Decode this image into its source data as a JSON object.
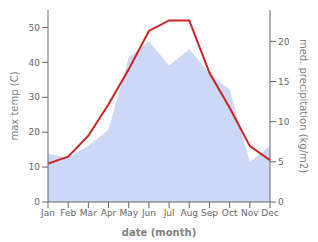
{
  "chart_data": {
    "type": "line",
    "categories": [
      "Jan",
      "Feb",
      "Mar",
      "Apr",
      "May",
      "Jun",
      "Jul",
      "Aug",
      "Sep",
      "Oct",
      "Nov",
      "Dec"
    ],
    "xlabel": "date (month)",
    "ylabel": "max temp (C)",
    "y2label": "med. precipitation (kg/m2)",
    "ylim": [
      0,
      55
    ],
    "yticks": [
      0,
      10,
      20,
      30,
      40,
      50
    ],
    "y2lim": [
      0,
      23.9
    ],
    "y2ticks": [
      0,
      5,
      10,
      15,
      20
    ],
    "series": [
      {
        "type": "area",
        "axis": "y2",
        "color": "#c8d4f5",
        "values": [
          6,
          5.5,
          7,
          9,
          18,
          20,
          17,
          19,
          16,
          14,
          5,
          7
        ]
      },
      {
        "type": "line",
        "color": "#cc2222",
        "values": [
          11,
          13,
          19,
          28,
          38,
          49,
          52,
          52,
          37,
          27,
          16,
          12
        ]
      }
    ]
  }
}
